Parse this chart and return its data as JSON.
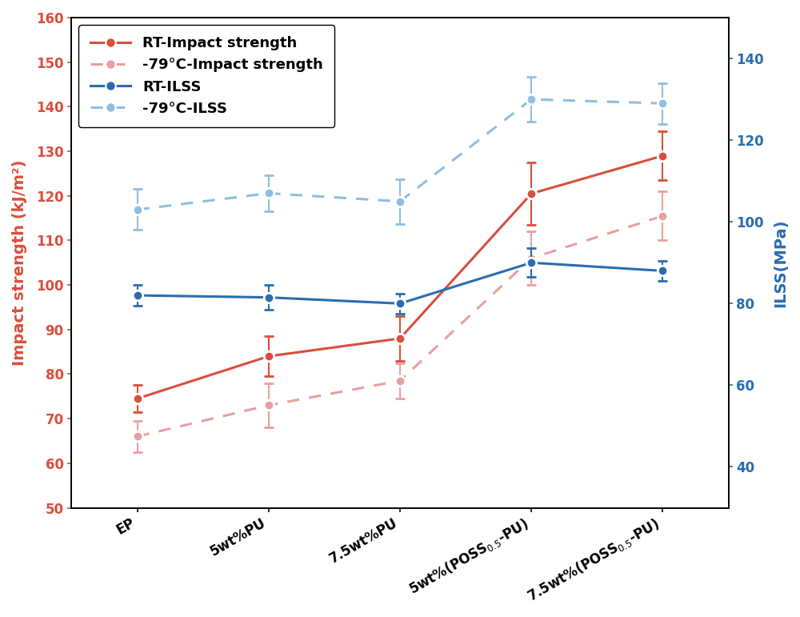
{
  "x_positions": [
    0,
    1,
    2,
    3,
    4
  ],
  "x_labels": [
    "EP",
    "5wt%PU",
    "7.5wt%PU",
    "5wt%(POSS$_{0.5}$-PU)",
    "7.5wt%(POSS$_{0.5}$-PU)"
  ],
  "rt_impact": [
    74.5,
    84.0,
    88.0,
    120.5,
    129.0
  ],
  "rt_impact_err": [
    3.0,
    4.5,
    5.0,
    7.0,
    5.5
  ],
  "cold_impact": [
    66.0,
    73.0,
    78.5,
    106.0,
    115.5
  ],
  "cold_impact_err": [
    3.5,
    5.0,
    4.0,
    6.0,
    5.5
  ],
  "rt_ilss": [
    82.0,
    81.5,
    80.0,
    90.0,
    88.0
  ],
  "rt_ilss_err": [
    2.5,
    3.0,
    2.5,
    3.5,
    2.5
  ],
  "cold_ilss": [
    103.0,
    107.0,
    105.0,
    130.0,
    129.0
  ],
  "cold_ilss_err": [
    5.0,
    4.5,
    5.5,
    5.5,
    5.0
  ],
  "left_ylim": [
    50,
    160
  ],
  "left_yticks": [
    50,
    60,
    70,
    80,
    90,
    100,
    110,
    120,
    130,
    140,
    150,
    160
  ],
  "right_ylim": [
    30,
    150
  ],
  "right_yticks": [
    40,
    60,
    80,
    100,
    120,
    140
  ],
  "color_rt_impact": "#d94f3d",
  "color_cold_impact": "#e8a0a0",
  "color_rt_ilss": "#2b6cb0",
  "color_cold_ilss": "#90bfdf",
  "ylabel_left": "Impact strength (kJ/m²)",
  "ylabel_right": "ILSS(MPa)",
  "legend_labels": [
    "RT-Impact strength",
    "-79°C-Impact strength",
    "RT-ILSS",
    "-79°C-ILSS"
  ],
  "marker_size": 9,
  "linewidth": 2.2,
  "capsize": 4,
  "elinewidth": 1.5,
  "fig_width": 10.0,
  "fig_height": 7.71,
  "dpi": 100
}
